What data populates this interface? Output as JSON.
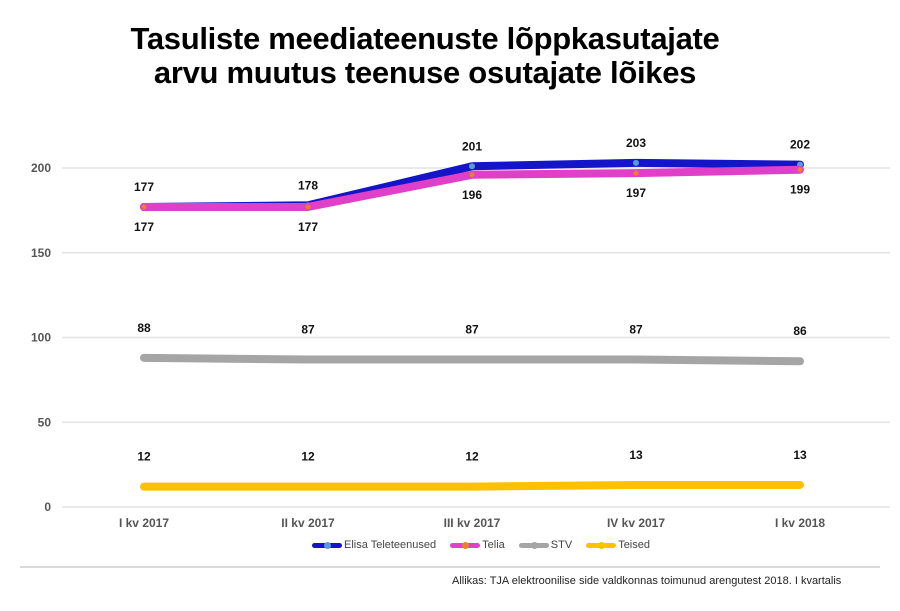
{
  "chart_data": {
    "type": "line",
    "title": "Tasuliste meediateenuste lõppkasutajate arvu muutus teenuse osutajate lõikes",
    "title_lines": [
      "Tasuliste meediateenuste lõppkasutajate",
      "arvu muutus teenuse osutajate lõikes"
    ],
    "xlabel": "",
    "ylabel": "",
    "categories": [
      "I kv 2017",
      "II kv 2017",
      "III kv 2017",
      "IV kv 2017",
      "I kv 2018"
    ],
    "ylim": [
      0,
      225
    ],
    "yticks": [
      0,
      50,
      100,
      150,
      200
    ],
    "grid": true,
    "legend_position": "bottom",
    "series": [
      {
        "name": "Elisa Teleteenused",
        "color": "#1414c8",
        "marker_color": "#5b9bd5",
        "values": [
          177,
          178,
          201,
          203,
          202
        ],
        "label_position": "above"
      },
      {
        "name": "Telia",
        "color": "#e040c8",
        "marker_color": "#ed7d31",
        "values": [
          177,
          177,
          196,
          197,
          199
        ],
        "label_position": "below"
      },
      {
        "name": "STV",
        "color": "#a5a5a5",
        "marker_color": "#a5a5a5",
        "values": [
          88,
          87,
          87,
          87,
          86
        ],
        "label_position": "above"
      },
      {
        "name": "Teised",
        "color": "#ffc000",
        "marker_color": "#ffc000",
        "values": [
          12,
          12,
          12,
          13,
          13
        ],
        "label_position": "above"
      }
    ],
    "source": "Allikas: TJA elektroonilise side valdkonnas toimunud arengutest 2018. I kvartalis"
  }
}
